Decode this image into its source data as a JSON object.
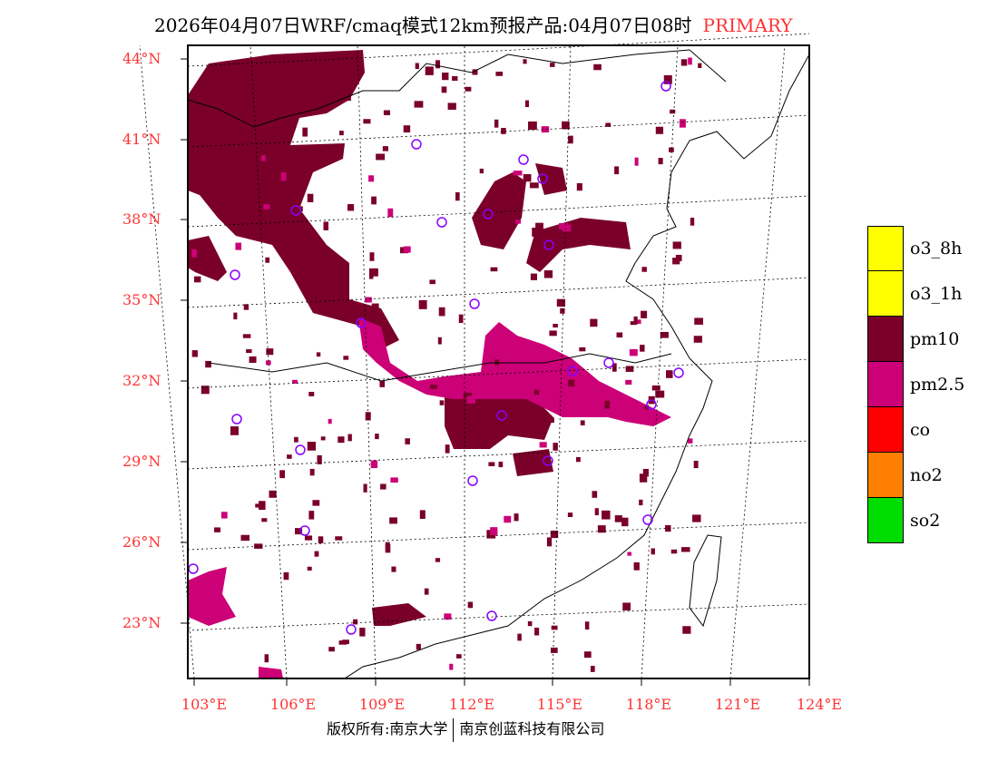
{
  "title": {
    "text": "2026年04月07日WRF/cmaq模式12km预报产品:04月07日08时",
    "tag": "PRIMARY"
  },
  "lat_labels": [
    "44°N",
    "41°N",
    "38°N",
    "35°N",
    "32°N",
    "29°N",
    "26°N",
    "23°N"
  ],
  "lon_labels": [
    "103°E",
    "106°E",
    "109°E",
    "112°E",
    "115°E",
    "118°E",
    "121°E",
    "124°E"
  ],
  "legend": [
    {
      "label": "o3_8h",
      "color": "#ffff00"
    },
    {
      "label": "o3_1h",
      "color": "#ffff00"
    },
    {
      "label": "pm10",
      "color": "#7a0029"
    },
    {
      "label": "pm2.5",
      "color": "#cc0077"
    },
    {
      "label": "co",
      "color": "#ff0000"
    },
    {
      "label": "no2",
      "color": "#ff8000"
    },
    {
      "label": "so2",
      "color": "#00dd00"
    }
  ],
  "footer": {
    "left": "版权所有:南京大学",
    "right": "南京创蓝科技有限公司"
  }
}
